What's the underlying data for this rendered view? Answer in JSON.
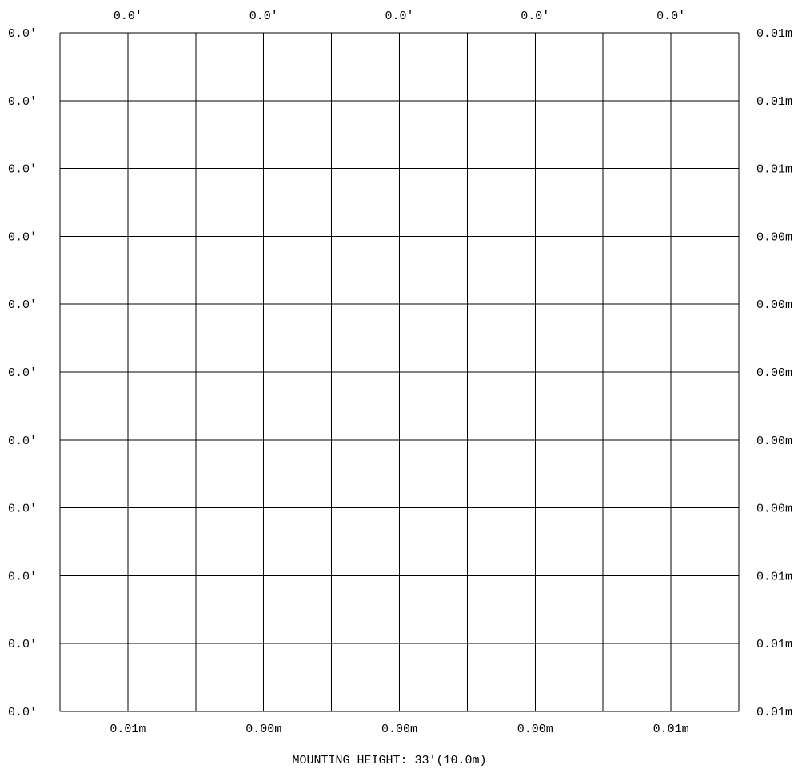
{
  "colors": {
    "background": "#ffffff",
    "grid_line": "#000000",
    "text": "#000000"
  },
  "grid": {
    "columns": 10,
    "rows": 10
  },
  "top_labels": [
    "0.0'",
    "0.0'",
    "0.0'",
    "0.0'",
    "0.0'"
  ],
  "left_labels": [
    "0.0'",
    "0.0'",
    "0.0'",
    "0.0'",
    "0.0'",
    "0.0'",
    "0.0'",
    "0.0'",
    "0.0'",
    "0.0'",
    "0.0'"
  ],
  "right_labels": [
    "0.01m",
    "0.01m",
    "0.01m",
    "0.00m",
    "0.00m",
    "0.00m",
    "0.00m",
    "0.00m",
    "0.01m",
    "0.01m",
    "0.01m"
  ],
  "bottom_labels": [
    "0.01m",
    "0.00m",
    "0.00m",
    "0.00m",
    "0.01m"
  ],
  "caption": "MOUNTING HEIGHT: 33'(10.0m)"
}
